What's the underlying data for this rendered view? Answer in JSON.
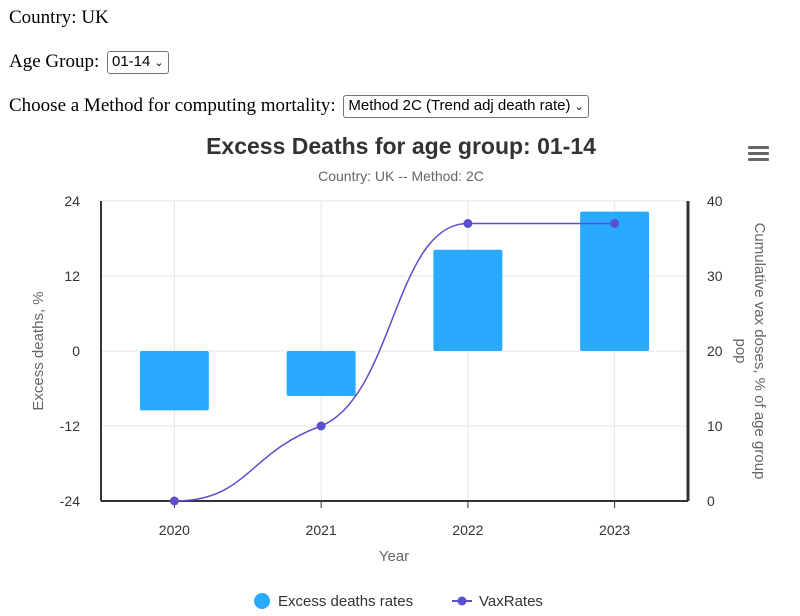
{
  "controls": {
    "country_label": "Country:",
    "country_value": "UK",
    "age_label": "Age Group:",
    "age_value": "01-14",
    "method_label": "Choose a Method for computing mortality:",
    "method_value": "Method 2C (Trend adj death rate)"
  },
  "menu_icon": "hamburger-menu-icon",
  "colors": {
    "bars": "#29aaff",
    "line": "#5a4fcf"
  },
  "chart_data": {
    "type": "bar+line",
    "title": "Excess Deaths for age group: 01-14",
    "subtitle": "Country: UK -- Method: 2C",
    "categories": [
      "2020",
      "2021",
      "2022",
      "2023"
    ],
    "xlabel": "Year",
    "y_left": {
      "label": "Excess deaths, %",
      "range": [
        -24,
        24
      ],
      "ticks": [
        "-24",
        "-12",
        "0",
        "12",
        "24"
      ]
    },
    "y_right": {
      "label": "Cumulative vax doses, % of age group pop",
      "range": [
        0,
        40
      ],
      "ticks": [
        "0",
        "10",
        "20",
        "30",
        "40"
      ]
    },
    "series": [
      {
        "name": "Excess deaths rates",
        "type": "bar",
        "axis": "left",
        "values": [
          -9.5,
          -7.2,
          16.2,
          22.3
        ]
      },
      {
        "name": "VaxRates",
        "type": "line",
        "axis": "right",
        "values": [
          0,
          10,
          37,
          37
        ]
      }
    ],
    "legend": [
      "Excess deaths rates",
      "VaxRates"
    ]
  }
}
